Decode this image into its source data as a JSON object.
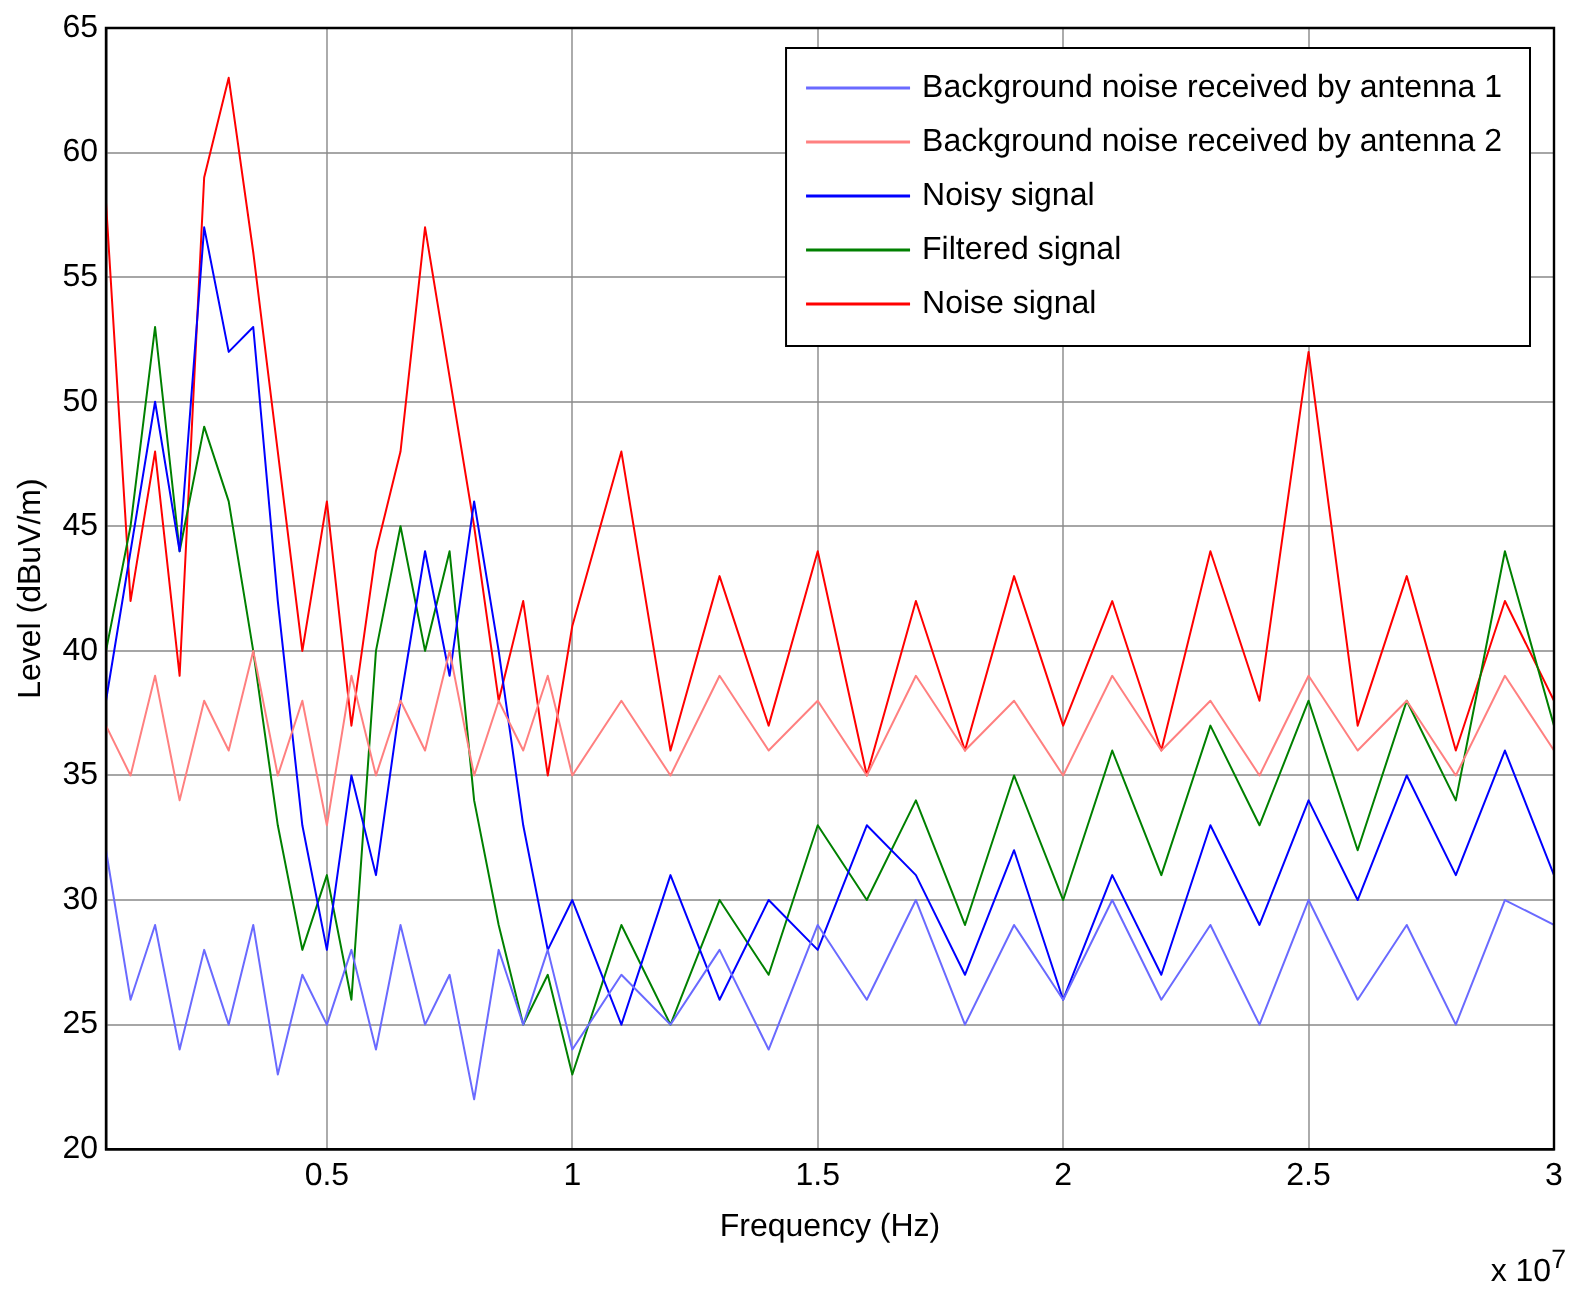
{
  "chart_data": {
    "type": "line",
    "xlabel": "Frequency (Hz)",
    "ylabel": "Level (dBuV/m)",
    "annotations": [
      "x 10$^{7}$"
    ],
    "x": [
      0.05,
      0.1,
      0.15,
      0.2,
      0.25,
      0.3,
      0.35,
      0.4,
      0.45,
      0.5,
      0.55,
      0.6,
      0.65,
      0.7,
      0.75,
      0.8,
      0.85,
      0.9,
      0.95,
      1,
      1.1,
      1.2,
      1.3,
      1.4,
      1.5,
      1.6,
      1.7,
      1.8,
      1.9,
      2,
      2.1,
      2.2,
      2.3,
      2.4,
      2.5,
      2.6,
      2.7,
      2.8,
      2.9,
      3
    ],
    "xlim": [
      0.05,
      3
    ],
    "xticks": [
      0.5,
      1,
      1.5,
      2,
      2.5,
      3
    ],
    "ylim": [
      20,
      65
    ],
    "yticks": [
      20,
      25,
      30,
      35,
      40,
      45,
      50,
      55,
      60,
      65
    ],
    "grid": true,
    "legend": "top right",
    "marker": "none",
    "line_style": "solid",
    "series": [
      {
        "name": "Background noise received by antenna 1",
        "color": "#6a6aff",
        "values": [
          32,
          26,
          29,
          24,
          28,
          25,
          29,
          23,
          27,
          25,
          28,
          24,
          29,
          25,
          27,
          22,
          28,
          25,
          28,
          24,
          27,
          25,
          28,
          24,
          29,
          26,
          30,
          25,
          29,
          26,
          30,
          26,
          29,
          25,
          30,
          26,
          29,
          25,
          30,
          29
        ]
      },
      {
        "name": "Background noise received by antenna 2",
        "color": "#ff8080",
        "values": [
          37,
          35,
          39,
          34,
          38,
          36,
          40,
          35,
          38,
          33,
          39,
          35,
          38,
          36,
          40,
          35,
          38,
          36,
          39,
          35,
          38,
          35,
          39,
          36,
          38,
          35,
          39,
          36,
          38,
          35,
          39,
          36,
          38,
          35,
          39,
          36,
          38,
          35,
          39,
          36
        ]
      },
      {
        "name": "Noisy signal",
        "color": "#0000ff",
        "values": [
          38,
          44,
          50,
          44,
          57,
          52,
          53,
          42,
          33,
          28,
          35,
          31,
          38,
          44,
          39,
          46,
          40,
          33,
          28,
          30,
          25,
          31,
          26,
          30,
          28,
          33,
          31,
          27,
          32,
          26,
          31,
          27,
          33,
          29,
          34,
          30,
          35,
          31,
          36,
          31
        ]
      },
      {
        "name": "Filtered signal",
        "color": "#008000",
        "values": [
          40,
          45,
          53,
          44,
          49,
          46,
          40,
          33,
          28,
          31,
          26,
          40,
          45,
          40,
          44,
          34,
          29,
          25,
          27,
          23,
          29,
          25,
          30,
          27,
          33,
          30,
          34,
          29,
          35,
          30,
          36,
          31,
          37,
          33,
          38,
          32,
          38,
          34,
          44,
          37
        ]
      },
      {
        "name": "Noise signal",
        "color": "#ff0000",
        "values": [
          58,
          42,
          48,
          39,
          59,
          63,
          56,
          48,
          40,
          46,
          37,
          44,
          48,
          57,
          51,
          45,
          38,
          42,
          35,
          41,
          48,
          36,
          43,
          37,
          44,
          35,
          42,
          36,
          43,
          37,
          42,
          36,
          44,
          38,
          52,
          37,
          43,
          36,
          42,
          38
        ]
      }
    ]
  }
}
